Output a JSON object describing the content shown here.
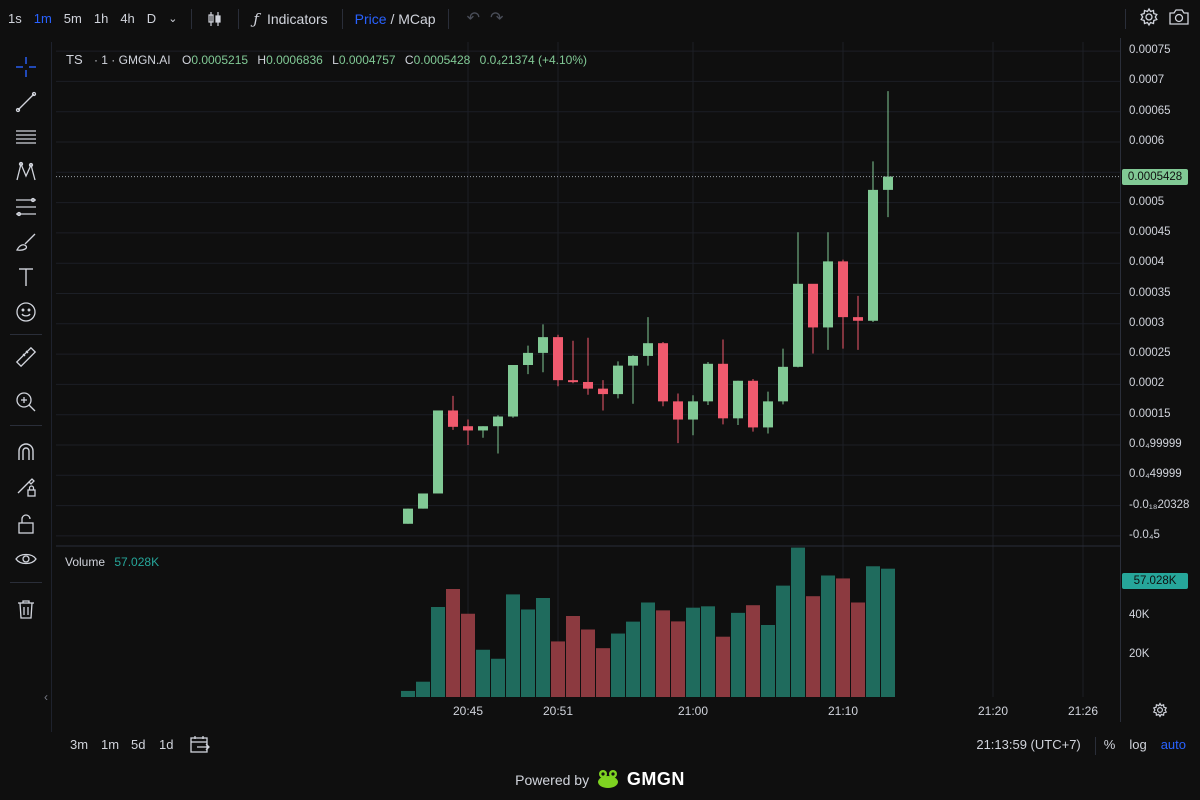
{
  "toolbar": {
    "timeframes": [
      "1s",
      "1m",
      "5m",
      "1h",
      "4h",
      "D"
    ],
    "active_timeframe": "1m",
    "indicators_label": "Indicators",
    "price_label": "Price",
    "mcap_sep": "/",
    "mcap_label": "MCap",
    "accent_color": "#2962ff"
  },
  "legend": {
    "symbol": "TS",
    "interval": "· 1 · GMGN.AI",
    "open_label": "O",
    "open": "0.0005215",
    "high_label": "H",
    "high": "0.0006836",
    "low_label": "L",
    "low": "0.0004757",
    "close_label": "C",
    "close": "0.0005428",
    "change": "0.0₄21374 (+4.10%)"
  },
  "volume_legend": {
    "label": "Volume",
    "value": "57.028K"
  },
  "price_scale": {
    "ticks": [
      "0.00075",
      "0.0007",
      "0.00065",
      "0.0006",
      "0.0005",
      "0.00045",
      "0.0004",
      "0.00035",
      "0.0003",
      "0.00025",
      "0.0002",
      "0.00015",
      "0.0₄99999",
      "0.0₄49999",
      "-0.0₁₈20328",
      "-0.0₄5"
    ],
    "current_price_label": "0.0005428",
    "volume_label": "57.028K",
    "volume_ticks": [
      "40K",
      "20K"
    ]
  },
  "time_axis": {
    "ticks": [
      "20:45",
      "20:51",
      "21:00",
      "21:10",
      "21:20",
      "21:26"
    ]
  },
  "bottom": {
    "ranges": [
      "3m",
      "1m",
      "5d",
      "1d"
    ],
    "clock": "21:13:59 (UTC+7)",
    "percent": "%",
    "log": "log",
    "auto": "auto",
    "powered_by": "Powered by",
    "brand": "GMGN"
  },
  "colors": {
    "up": "#81c995",
    "down": "#f05a6e",
    "vol_up": "#1f6b5d",
    "vol_down": "#8c3a40"
  },
  "chart_data": {
    "type": "candlestick",
    "title": "",
    "series": [
      {
        "name": "Price",
        "o_h_l_c": [
          [
            -3e-05,
            -5e-06,
            -3e-05,
            -5e-06
          ],
          [
            -5e-06,
            2e-05,
            -5e-06,
            2e-05
          ],
          [
            2e-05,
            0.000157,
            2e-05,
            0.000157
          ],
          [
            0.000157,
            0.000181,
            0.000125,
            0.00013
          ],
          [
            0.000131,
            0.000142,
            0.0001,
            0.000124
          ],
          [
            0.000124,
            0.000131,
            0.000112,
            0.000131
          ],
          [
            0.000131,
            0.000149,
            8.6e-05,
            0.000147
          ],
          [
            0.000147,
            0.000231,
            0.000145,
            0.000232
          ],
          [
            0.000232,
            0.000264,
            0.000217,
            0.000252
          ],
          [
            0.000252,
            0.000299,
            0.00022,
            0.000278
          ],
          [
            0.000278,
            0.000282,
            0.000197,
            0.000207
          ],
          [
            0.000207,
            0.000272,
            0.000202,
            0.000204
          ],
          [
            0.000204,
            0.000277,
            0.000183,
            0.000193
          ],
          [
            0.000193,
            0.000207,
            0.000157,
            0.000184
          ],
          [
            0.000184,
            0.000238,
            0.000177,
            0.000231
          ],
          [
            0.000231,
            0.000248,
            0.000168,
            0.000247
          ],
          [
            0.000247,
            0.000311,
            0.000231,
            0.000268
          ],
          [
            0.000268,
            0.00027,
            0.000164,
            0.000172
          ],
          [
            0.000172,
            0.000185,
            0.000103,
            0.000142
          ],
          [
            0.000142,
            0.000182,
            0.000116,
            0.000172
          ],
          [
            0.000172,
            0.000237,
            0.000166,
            0.000234
          ],
          [
            0.000234,
            0.000274,
            0.000134,
            0.000144
          ],
          [
            0.000144,
            0.000206,
            0.000133,
            0.000206
          ],
          [
            0.000206,
            0.000209,
            0.000122,
            0.000129
          ],
          [
            0.000129,
            0.000188,
            0.000119,
            0.000172
          ],
          [
            0.000172,
            0.000259,
            0.000167,
            0.000229
          ],
          [
            0.000229,
            0.000451,
            0.000228,
            0.000366
          ],
          [
            0.000366,
            0.000361,
            0.000251,
            0.000294
          ],
          [
            0.000294,
            0.000451,
            0.000257,
            0.000403
          ],
          [
            0.000403,
            0.000406,
            0.000259,
            0.000311
          ],
          [
            0.000311,
            0.000346,
            0.000257,
            0.000305
          ],
          [
            0.000305,
            0.000568,
            0.000303,
            0.000521
          ],
          [
            0.000521,
            0.000684,
            0.000476,
            0.000543
          ]
        ]
      },
      {
        "name": "Volume",
        "values": [
          2700,
          6800,
          40000,
          48000,
          37000,
          21000,
          17000,
          45600,
          38900,
          44000,
          24700,
          36000,
          30000,
          21700,
          28200,
          33500,
          42000,
          38500,
          33600,
          39700,
          40300,
          26800,
          37400,
          40800,
          32000,
          49500,
          66400,
          44800,
          54000,
          52700,
          42000,
          58100,
          57028
        ]
      }
    ],
    "x": [
      "20:42",
      "20:43",
      "20:44",
      "20:45",
      "20:46",
      "20:47",
      "20:48",
      "20:49",
      "20:50",
      "20:51",
      "20:52",
      "20:53",
      "20:54",
      "20:55",
      "20:56",
      "20:57",
      "20:58",
      "20:59",
      "21:00",
      "21:01",
      "21:02",
      "21:03",
      "21:04",
      "21:05",
      "21:06",
      "21:07",
      "21:08",
      "21:09",
      "21:10",
      "21:11",
      "21:12",
      "21:13",
      "21:14"
    ],
    "ylim": [
      -5e-05,
      0.00075
    ],
    "volume_ylim": [
      0,
      60000
    ],
    "last_price": 0.0005428,
    "grid": true
  }
}
